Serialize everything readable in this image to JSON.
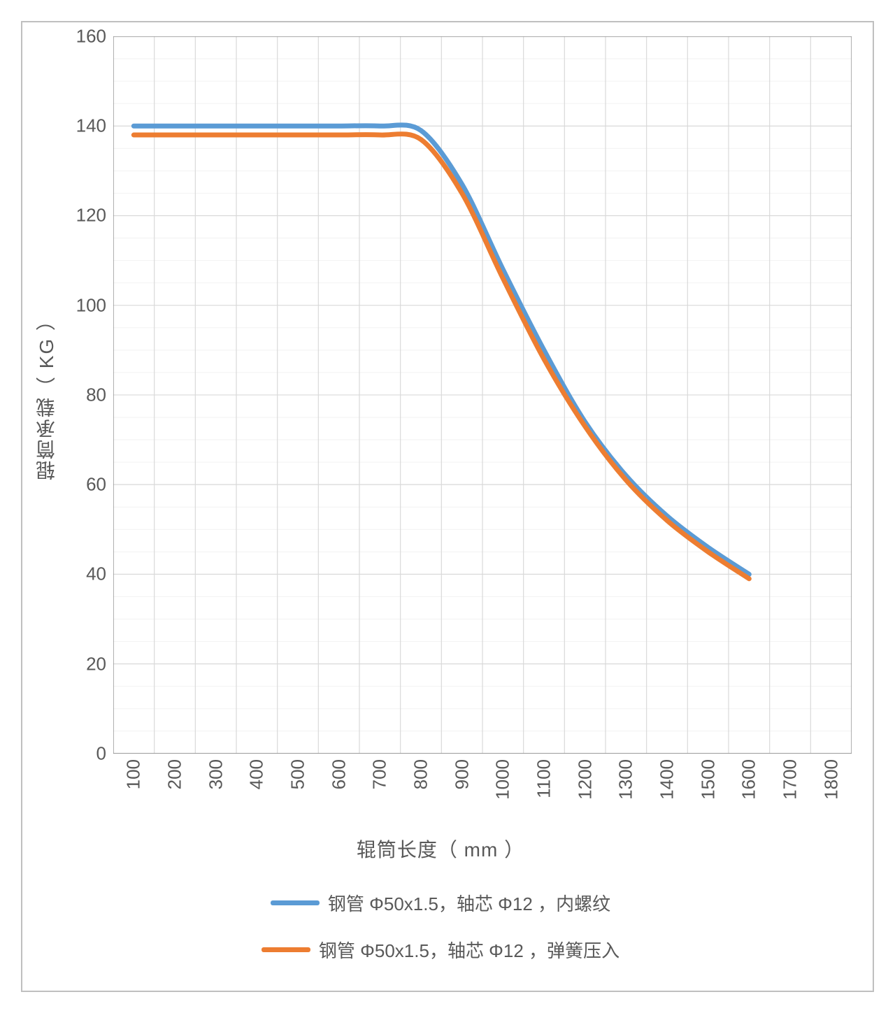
{
  "chart": {
    "type": "line",
    "background_color": "#ffffff",
    "border_color": "#bfbfbf",
    "grid_major_color": "#d9d9d9",
    "grid_minor_color": "#f2f2f2",
    "tick_color": "#808080",
    "axis_label_color": "#595959",
    "tick_label_color": "#595959",
    "legend_label_color": "#595959",
    "tick_label_fontsize": 26,
    "axis_label_fontsize": 28,
    "legend_fontsize": 26,
    "line_width": 7,
    "xlabel": "辊筒长度（ mm ）",
    "ylabel": "辊筒承载（ KG ）",
    "xlim": [
      100,
      1800
    ],
    "ylim": [
      0,
      160
    ],
    "yticks": [
      0,
      20,
      40,
      60,
      80,
      100,
      120,
      140,
      160
    ],
    "yminor_step": 5,
    "xticks": [
      100,
      200,
      300,
      400,
      500,
      600,
      700,
      800,
      900,
      1000,
      1100,
      1200,
      1300,
      1400,
      1500,
      1600,
      1700,
      1800
    ],
    "series": [
      {
        "id": "s1",
        "label": "钢管 Φ50x1.5，轴芯 Φ12 ，内螺纹",
        "color": "#5b9bd5",
        "x": [
          100,
          200,
          300,
          400,
          500,
          600,
          700,
          800,
          900,
          1000,
          1100,
          1200,
          1300,
          1400,
          1500,
          1600
        ],
        "y": [
          140,
          140,
          140,
          140,
          140,
          140,
          140,
          139,
          127,
          108,
          90,
          74,
          62,
          53,
          46,
          40
        ]
      },
      {
        "id": "s2",
        "label": "钢管 Φ50x1.5，轴芯 Φ12 ，弹簧压入",
        "color": "#ed7d31",
        "x": [
          100,
          200,
          300,
          400,
          500,
          600,
          700,
          800,
          900,
          1000,
          1100,
          1200,
          1300,
          1400,
          1500,
          1600
        ],
        "y": [
          138,
          138,
          138,
          138,
          138,
          138,
          138,
          137,
          125,
          106,
          88,
          73,
          61,
          52,
          45,
          39
        ]
      }
    ]
  }
}
